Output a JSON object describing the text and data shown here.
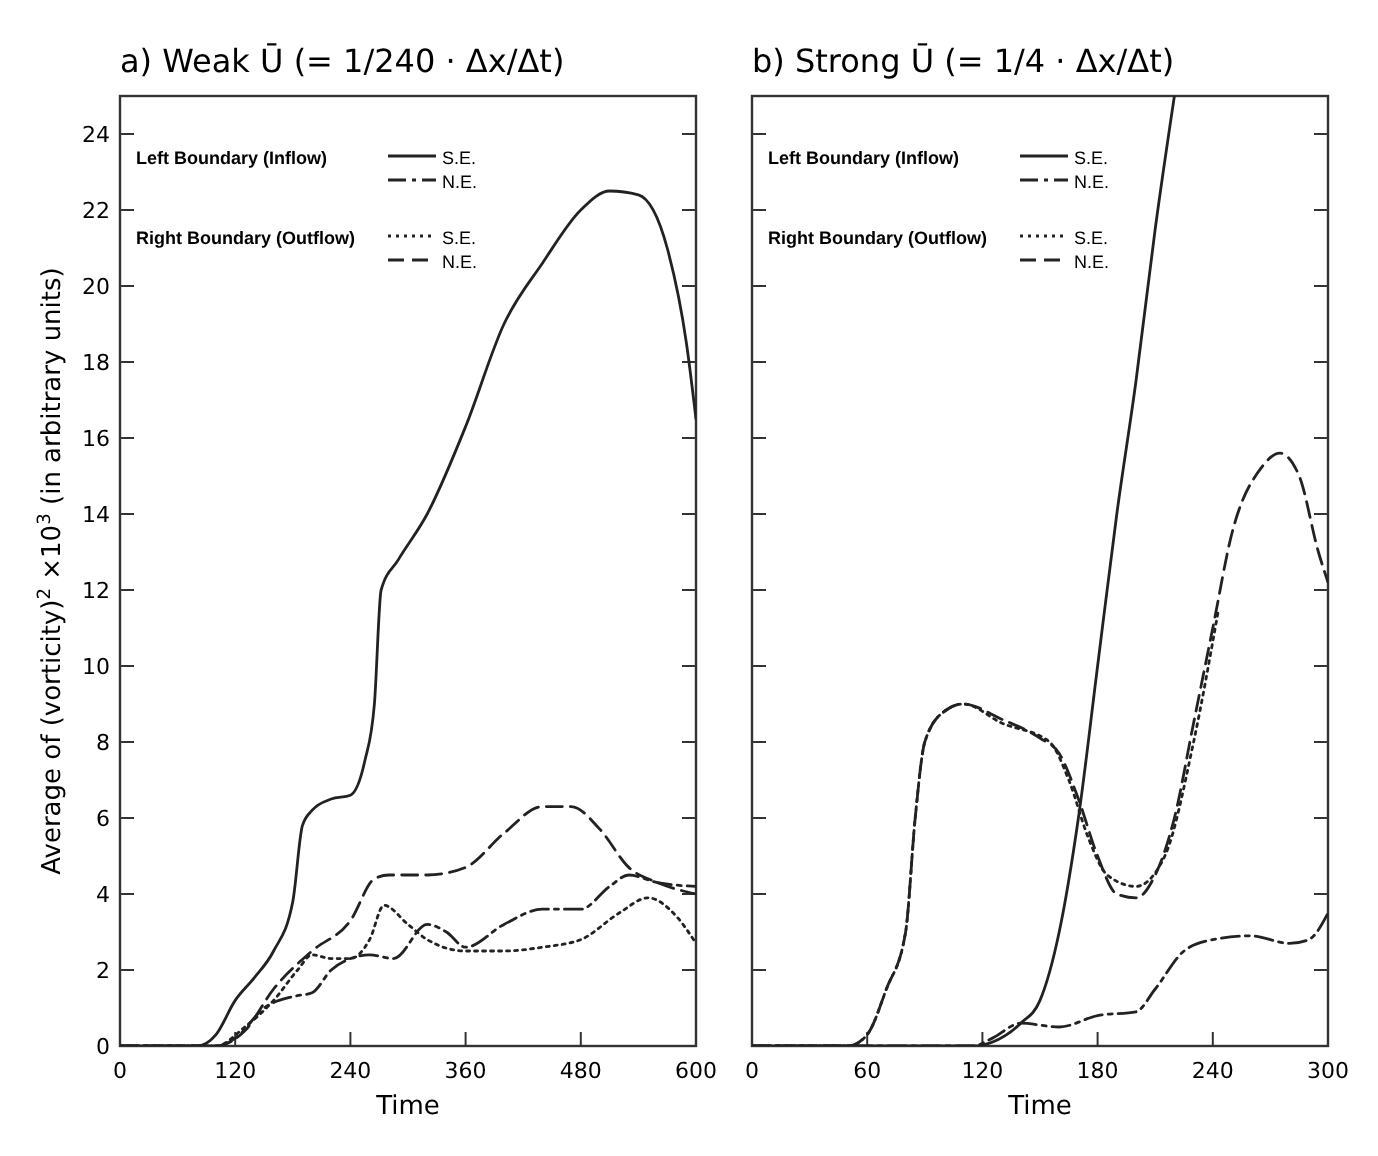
{
  "chart_data": [
    {
      "type": "line",
      "title": "a)  Weak Ū (= 1/240 · Δx/Δt)",
      "xlabel": "Time",
      "ylabel": "Average of (vorticity)$^{2}$ ×10$^{3}$ (in arbitrary units)",
      "xlim": [
        0,
        600
      ],
      "ylim": [
        0,
        25
      ],
      "xticks": [
        0,
        120,
        240,
        360,
        480,
        600
      ],
      "yticks": [
        0,
        2,
        4,
        6,
        8,
        10,
        12,
        14,
        16,
        18,
        20,
        22,
        24
      ],
      "grid": false,
      "legend": "top",
      "marker": "none",
      "annotations": [
        "Left Boundary (Inflow)",
        "Right Boundary (Outflow)"
      ],
      "series": [
        {
          "name": "S.E.",
          "color": "#222222",
          "line_style": "solid",
          "x": [
            0,
            80,
            100,
            120,
            140,
            160,
            180,
            190,
            200,
            220,
            240,
            255,
            265,
            272,
            290,
            320,
            360,
            400,
            440,
            480,
            510,
            540,
            570,
            590,
            600
          ],
          "values": [
            0,
            0,
            0.3,
            1.2,
            1.8,
            2.5,
            3.8,
            5.8,
            6.2,
            6.5,
            6.6,
            7.5,
            9,
            12,
            12.8,
            14,
            16.3,
            19,
            20.6,
            22,
            22.5,
            22.4,
            21,
            18.5,
            16.5
          ]
        },
        {
          "name": "N.E.",
          "color": "#222222",
          "line_style": "dashdot",
          "x": [
            0,
            100,
            120,
            150,
            180,
            200,
            220,
            240,
            260,
            285,
            320,
            340,
            360,
            400,
            440,
            480,
            510,
            530,
            560,
            600
          ],
          "values": [
            0,
            0,
            0.2,
            1,
            1.3,
            1.4,
            2,
            2.3,
            2.4,
            2.3,
            3.2,
            3,
            2.6,
            3.2,
            3.6,
            3.6,
            4.2,
            4.5,
            4.3,
            4.2
          ]
        },
        {
          "name": "S.E.",
          "color": "#222222",
          "line_style": "dotted",
          "x": [
            0,
            100,
            130,
            160,
            185,
            200,
            220,
            240,
            260,
            275,
            300,
            320,
            360,
            400,
            440,
            480,
            520,
            550,
            580,
            600
          ],
          "values": [
            0,
            0,
            0.5,
            1.2,
            2,
            2.4,
            2.3,
            2.3,
            2.8,
            3.7,
            3.2,
            2.8,
            2.5,
            2.5,
            2.6,
            2.8,
            3.5,
            3.9,
            3.4,
            2.7
          ]
        },
        {
          "name": "N.E.",
          "color": "#222222",
          "line_style": "dashed",
          "x": [
            0,
            100,
            130,
            160,
            200,
            240,
            265,
            280,
            320,
            360,
            400,
            440,
            470,
            500,
            530,
            560,
            600
          ],
          "values": [
            0,
            0,
            0.4,
            1.5,
            2.5,
            3.3,
            4.4,
            4.5,
            4.5,
            4.7,
            5.6,
            6.3,
            6.3,
            5.7,
            4.7,
            4.3,
            4
          ]
        }
      ]
    },
    {
      "type": "line",
      "title": "b)  Strong Ū (= 1/4 · Δx/Δt)",
      "xlabel": "Time",
      "xlim": [
        0,
        300
      ],
      "ylim": [
        0,
        25
      ],
      "xticks": [
        0,
        60,
        120,
        180,
        240,
        300
      ],
      "yticks": [
        0,
        2,
        4,
        6,
        8,
        10,
        12,
        14,
        16,
        18,
        20,
        22,
        24
      ],
      "tick_labels": "x",
      "grid": false,
      "legend": "top",
      "marker": "none",
      "annotations": [
        "Left Boundary (Inflow)",
        "Right Boundary (Outflow)"
      ],
      "series": [
        {
          "name": "S.E.",
          "color": "#222222",
          "line_style": "solid",
          "x": [
            0,
            115,
            125,
            140,
            150,
            160,
            170,
            180,
            190,
            200,
            210,
            220
          ],
          "values": [
            0,
            0,
            0.1,
            0.6,
            1.2,
            3,
            6,
            10,
            14,
            17.5,
            21.5,
            25
          ]
        },
        {
          "name": "N.E.",
          "color": "#222222",
          "line_style": "dashdot",
          "x": [
            0,
            115,
            125,
            140,
            160,
            180,
            200,
            210,
            225,
            240,
            260,
            280,
            290,
            300
          ],
          "values": [
            0,
            0,
            0.2,
            0.6,
            0.5,
            0.8,
            0.9,
            1.5,
            2.5,
            2.8,
            2.9,
            2.7,
            2.8,
            3.5
          ]
        },
        {
          "name": "S.E.",
          "color": "#222222",
          "line_style": "dotted",
          "x": [
            0,
            50,
            60,
            70,
            80,
            85,
            90,
            100,
            110,
            130,
            155,
            165,
            175,
            185,
            200,
            215,
            230,
            243
          ],
          "values": [
            0,
            0,
            0.3,
            1.5,
            3,
            6,
            8,
            8.8,
            9,
            8.5,
            8,
            7,
            5.5,
            4.5,
            4.2,
            5,
            8,
            11.5
          ]
        },
        {
          "name": "N.E.",
          "color": "#222222",
          "line_style": "dashed",
          "x": [
            0,
            50,
            60,
            70,
            80,
            85,
            90,
            100,
            110,
            130,
            150,
            160,
            170,
            180,
            190,
            200,
            210,
            220,
            230,
            240,
            250,
            265,
            275,
            285,
            295,
            300
          ],
          "values": [
            0,
            0,
            0.3,
            1.5,
            3,
            6,
            8,
            8.8,
            9,
            8.6,
            8.1,
            7.7,
            6.5,
            5,
            4,
            3.9,
            4.5,
            6,
            8.5,
            11,
            13.5,
            15.2,
            15.6,
            15,
            13,
            12.2
          ]
        }
      ]
    }
  ]
}
